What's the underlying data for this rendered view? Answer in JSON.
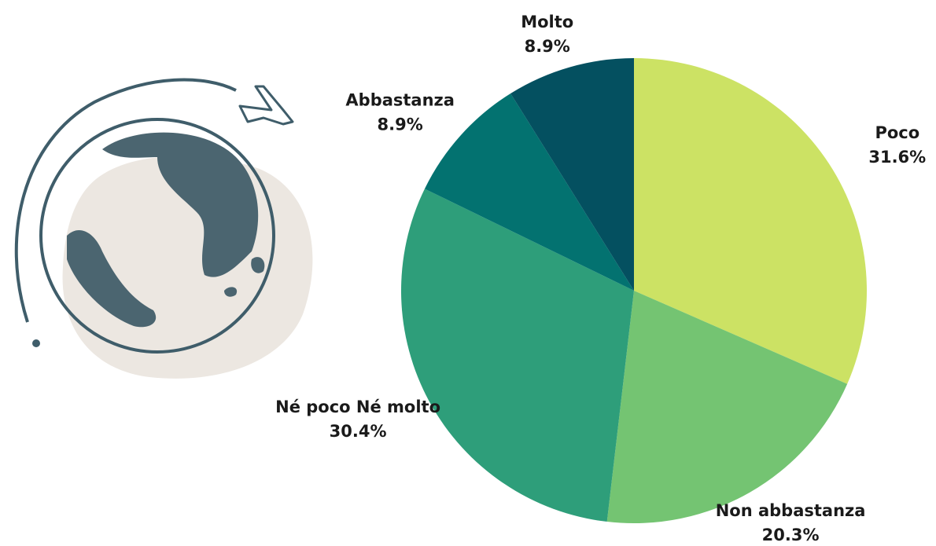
{
  "chart_data": {
    "type": "pie",
    "categories": [
      "Poco",
      "Non abbastanza",
      "Né poco Né molto",
      "Abbastanza",
      "Molto"
    ],
    "values": [
      31.6,
      20.3,
      30.4,
      8.9,
      8.9
    ],
    "value_labels": [
      "31.6%",
      "20.3%",
      "30.4%",
      "8.9%",
      "8.9%"
    ],
    "colors": [
      "#cce264",
      "#74c472",
      "#2e9e7a",
      "#037270",
      "#045060"
    ]
  }
}
